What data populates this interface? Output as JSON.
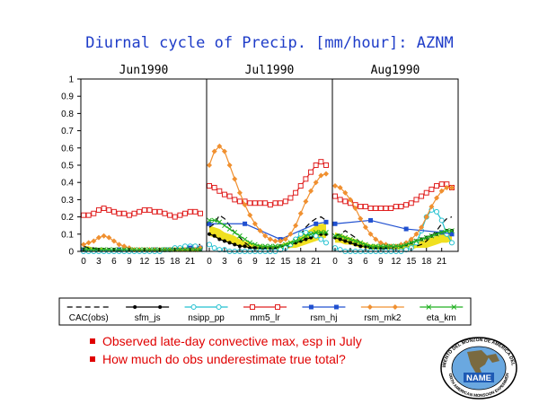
{
  "title": "Diurnal cycle of Precip. [mm/hour]: AZNM",
  "bullets": [
    "Observed late-day convective max, esp in July",
    "How much do obs underestimate true total?"
  ],
  "logo": {
    "ring_text": "EXPERIMENTO DEL MONZON DE AMERICA DEL NORTE",
    "center_text": "NAME",
    "bottom_text": "NORTH AMERICAN MONSOON EXPERIMENT"
  },
  "chart_data": {
    "type": "line",
    "panels": [
      "Jun1990",
      "Jul1990",
      "Aug1990"
    ],
    "x_ticks": [
      0,
      3,
      6,
      9,
      12,
      15,
      18,
      21
    ],
    "x_range": [
      0,
      23
    ],
    "ylim": [
      0,
      1
    ],
    "y_ticks": [
      0,
      0.1,
      0.2,
      0.3,
      0.4,
      0.5,
      0.6,
      0.7,
      0.8,
      0.9,
      1
    ],
    "obs_band": {
      "name": "",
      "color": "#f0e020",
      "low": [
        [
          0.0,
          0.0,
          0.0,
          0.0,
          0.0,
          0.0,
          0.0,
          0.0,
          0.0,
          0.0,
          0.0,
          0.0,
          0.0,
          0.0,
          0.0,
          0.0,
          0.0,
          0.0,
          0.0,
          0.0,
          0.0,
          0.0,
          0.0,
          0.0
        ],
        [
          0.09,
          0.08,
          0.07,
          0.06,
          0.05,
          0.04,
          0.03,
          0.02,
          0.02,
          0.01,
          0.01,
          0.01,
          0.01,
          0.01,
          0.01,
          0.01,
          0.02,
          0.02,
          0.03,
          0.04,
          0.05,
          0.06,
          0.07,
          0.08
        ],
        [
          0.05,
          0.05,
          0.04,
          0.04,
          0.03,
          0.02,
          0.02,
          0.01,
          0.01,
          0.01,
          0.01,
          0.01,
          0.01,
          0.01,
          0.01,
          0.01,
          0.02,
          0.02,
          0.02,
          0.03,
          0.04,
          0.05,
          0.05,
          0.06
        ]
      ],
      "high": [
        [
          0.03,
          0.03,
          0.02,
          0.02,
          0.02,
          0.01,
          0.01,
          0.01,
          0.01,
          0.01,
          0.01,
          0.01,
          0.01,
          0.01,
          0.01,
          0.01,
          0.01,
          0.01,
          0.02,
          0.02,
          0.02,
          0.03,
          0.03,
          0.03
        ],
        [
          0.15,
          0.14,
          0.13,
          0.11,
          0.1,
          0.09,
          0.07,
          0.06,
          0.05,
          0.04,
          0.04,
          0.03,
          0.03,
          0.03,
          0.04,
          0.05,
          0.06,
          0.07,
          0.09,
          0.11,
          0.13,
          0.15,
          0.16,
          0.16
        ],
        [
          0.11,
          0.1,
          0.09,
          0.08,
          0.07,
          0.06,
          0.05,
          0.04,
          0.04,
          0.03,
          0.03,
          0.03,
          0.03,
          0.03,
          0.04,
          0.04,
          0.05,
          0.06,
          0.07,
          0.08,
          0.09,
          0.1,
          0.11,
          0.12
        ]
      ]
    },
    "series": [
      {
        "name": "CAC(obs)",
        "color": "#000000",
        "marker": "none",
        "dash": "6,4",
        "values": [
          [
            0.03,
            0.02,
            0.02,
            0.01,
            0.01,
            0.01,
            0.01,
            0.01,
            0.01,
            0.01,
            0.01,
            0.01,
            0.01,
            0.01,
            0.01,
            0.01,
            0.01,
            0.01,
            0.01,
            0.02,
            0.02,
            0.03,
            0.04,
            0.04
          ],
          [
            0.14,
            0.16,
            0.21,
            0.19,
            0.15,
            0.11,
            0.08,
            0.05,
            0.03,
            0.02,
            0.02,
            0.01,
            0.01,
            0.01,
            0.01,
            0.02,
            0.03,
            0.06,
            0.1,
            0.14,
            0.17,
            0.19,
            0.2,
            0.18
          ],
          [
            0.09,
            0.1,
            0.12,
            0.1,
            0.08,
            0.05,
            0.04,
            0.02,
            0.02,
            0.02,
            0.01,
            0.01,
            0.01,
            0.01,
            0.01,
            0.02,
            0.03,
            0.04,
            0.06,
            0.09,
            0.12,
            0.16,
            0.19,
            0.2
          ]
        ]
      },
      {
        "name": "sfm_js",
        "color": "#000000",
        "marker": "dot",
        "dash": "",
        "values": [
          [
            0.01,
            0.01,
            0.01,
            0.01,
            0.01,
            0.01,
            0.01,
            0.01,
            0.01,
            0.01,
            0.01,
            0.01,
            0.01,
            0.01,
            0.01,
            0.01,
            0.01,
            0.01,
            0.01,
            0.01,
            0.01,
            0.01,
            0.01,
            0.01
          ],
          [
            0.1,
            0.09,
            0.07,
            0.06,
            0.05,
            0.04,
            0.03,
            0.03,
            0.02,
            0.02,
            0.02,
            0.02,
            0.02,
            0.02,
            0.03,
            0.03,
            0.04,
            0.05,
            0.06,
            0.07,
            0.08,
            0.09,
            0.1,
            0.1
          ],
          [
            0.08,
            0.07,
            0.06,
            0.05,
            0.04,
            0.03,
            0.03,
            0.02,
            0.02,
            0.02,
            0.02,
            0.02,
            0.03,
            0.03,
            0.04,
            0.05,
            0.06,
            0.07,
            0.08,
            0.09,
            0.1,
            0.11,
            0.12,
            0.12
          ]
        ]
      },
      {
        "name": "nsipp_pp",
        "color": "#20c0d0",
        "marker": "circle",
        "dash": "",
        "values": [
          [
            0.0,
            0.0,
            0.0,
            0.0,
            0.0,
            0.0,
            0.0,
            0.0,
            0.0,
            0.0,
            0.0,
            0.0,
            0.0,
            0.0,
            0.0,
            0.0,
            0.01,
            0.01,
            0.02,
            0.02,
            0.03,
            0.03,
            0.03,
            0.02
          ],
          [
            0.04,
            0.02,
            0.01,
            0.01,
            0.0,
            0.0,
            0.0,
            0.0,
            0.0,
            0.0,
            0.0,
            0.0,
            0.0,
            0.0,
            0.01,
            0.02,
            0.04,
            0.07,
            0.1,
            0.11,
            0.1,
            0.09,
            0.07,
            0.05
          ],
          [
            0.02,
            0.01,
            0.0,
            0.0,
            0.0,
            0.0,
            0.0,
            0.0,
            0.0,
            0.0,
            0.0,
            0.0,
            0.0,
            0.0,
            0.01,
            0.02,
            0.05,
            0.12,
            0.2,
            0.24,
            0.23,
            0.18,
            0.1,
            0.05
          ]
        ]
      },
      {
        "name": "mm5_lr",
        "color": "#e02020",
        "marker": "square",
        "dash": "",
        "values": [
          [
            0.21,
            0.21,
            0.22,
            0.24,
            0.25,
            0.24,
            0.23,
            0.22,
            0.22,
            0.21,
            0.22,
            0.23,
            0.24,
            0.24,
            0.23,
            0.23,
            0.22,
            0.21,
            0.2,
            0.21,
            0.22,
            0.23,
            0.23,
            0.22
          ],
          [
            0.38,
            0.37,
            0.35,
            0.33,
            0.32,
            0.3,
            0.29,
            0.29,
            0.28,
            0.28,
            0.28,
            0.28,
            0.27,
            0.28,
            0.28,
            0.29,
            0.31,
            0.34,
            0.38,
            0.42,
            0.46,
            0.5,
            0.52,
            0.5
          ],
          [
            0.32,
            0.3,
            0.29,
            0.28,
            0.27,
            0.26,
            0.26,
            0.25,
            0.25,
            0.25,
            0.25,
            0.25,
            0.26,
            0.26,
            0.27,
            0.28,
            0.3,
            0.32,
            0.34,
            0.36,
            0.38,
            0.39,
            0.39,
            0.37
          ]
        ]
      },
      {
        "name": "rsm_hj",
        "color": "#2050d0",
        "marker": "fsquare",
        "dash": "",
        "values": [
          [
            0.01,
            null,
            null,
            null,
            null,
            null,
            null,
            0.01,
            null,
            null,
            null,
            null,
            null,
            null,
            0.01,
            null,
            null,
            null,
            null,
            null,
            null,
            0.02,
            null,
            0.02
          ],
          [
            0.16,
            null,
            null,
            null,
            null,
            null,
            null,
            0.16,
            null,
            null,
            null,
            null,
            null,
            null,
            0.07,
            null,
            null,
            null,
            null,
            null,
            null,
            0.16,
            null,
            0.17
          ],
          [
            0.16,
            null,
            null,
            null,
            null,
            null,
            null,
            0.18,
            null,
            null,
            null,
            null,
            null,
            null,
            0.13,
            null,
            null,
            null,
            null,
            null,
            null,
            0.11,
            null,
            0.1
          ]
        ]
      },
      {
        "name": "rsm_mk2",
        "color": "#f09030",
        "marker": "diamond",
        "dash": "",
        "values": [
          [
            0.04,
            0.05,
            0.06,
            0.08,
            0.09,
            0.08,
            0.06,
            0.04,
            0.03,
            0.02,
            0.01,
            0.01,
            0.01,
            0.01,
            0.01,
            0.01,
            0.01,
            0.01,
            0.01,
            0.01,
            0.01,
            0.01,
            0.01,
            0.02
          ],
          [
            0.5,
            0.58,
            0.61,
            0.58,
            0.5,
            0.42,
            0.34,
            0.27,
            0.21,
            0.16,
            0.12,
            0.09,
            0.07,
            0.06,
            0.06,
            0.07,
            0.1,
            0.15,
            0.22,
            0.29,
            0.35,
            0.4,
            0.44,
            0.45
          ],
          [
            0.38,
            0.37,
            0.34,
            0.3,
            0.25,
            0.19,
            0.14,
            0.1,
            0.07,
            0.05,
            0.04,
            0.03,
            0.03,
            0.04,
            0.05,
            0.07,
            0.1,
            0.14,
            0.2,
            0.26,
            0.31,
            0.35,
            0.37,
            0.37
          ]
        ]
      },
      {
        "name": "eta_km",
        "color": "#20b020",
        "marker": "x",
        "dash": "",
        "values": [
          [
            0.01,
            0.01,
            0.01,
            0.01,
            0.01,
            0.01,
            0.01,
            0.01,
            0.01,
            0.01,
            0.01,
            0.01,
            0.01,
            0.01,
            0.01,
            0.01,
            0.01,
            0.01,
            0.01,
            0.01,
            0.01,
            0.01,
            0.01,
            0.01
          ],
          [
            0.18,
            0.18,
            0.17,
            0.15,
            0.13,
            0.11,
            0.09,
            0.07,
            0.05,
            0.04,
            0.03,
            0.03,
            0.03,
            0.03,
            0.03,
            0.04,
            0.05,
            0.06,
            0.07,
            0.09,
            0.1,
            0.11,
            0.11,
            0.11
          ],
          [
            0.09,
            0.09,
            0.08,
            0.07,
            0.06,
            0.05,
            0.04,
            0.03,
            0.03,
            0.03,
            0.03,
            0.03,
            0.03,
            0.03,
            0.04,
            0.05,
            0.06,
            0.07,
            0.08,
            0.09,
            0.1,
            0.11,
            0.12,
            0.12
          ]
        ]
      }
    ]
  }
}
